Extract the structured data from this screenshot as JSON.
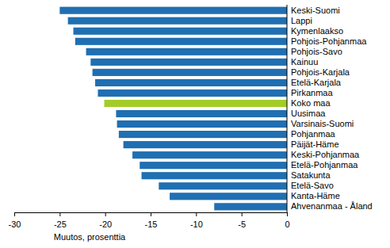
{
  "chart_data": {
    "type": "bar",
    "orientation": "horizontal",
    "categories": [
      "Keski-Suomi",
      "Lappi",
      "Kymenlaakso",
      "Pohjois-Pohjanmaa",
      "Pohjois-Savo",
      "Kainuu",
      "Pohjois-Karjala",
      "Etelä-Karjala",
      "Pirkanmaa",
      "Koko maa",
      "Uusimaa",
      "Varsinais-Suomi",
      "Pohjanmaa",
      "Päijät-Häme",
      "Keski-Pohjanmaa",
      "Etelä-Pohjanmaa",
      "Satakunta",
      "Etelä-Savo",
      "Kanta-Häme",
      "Ahvenanmaa - Åland"
    ],
    "values": [
      -25.0,
      -24.1,
      -23.5,
      -23.3,
      -22.1,
      -21.6,
      -21.4,
      -21.1,
      -20.8,
      -20.1,
      -18.8,
      -18.7,
      -18.5,
      -18.0,
      -17.0,
      -16.2,
      -16.0,
      -14.1,
      -12.9,
      -8.0
    ],
    "colors": [
      "#1f6fb2",
      "#1f6fb2",
      "#1f6fb2",
      "#1f6fb2",
      "#1f6fb2",
      "#1f6fb2",
      "#1f6fb2",
      "#1f6fb2",
      "#1f6fb2",
      "#a3cc29",
      "#1f6fb2",
      "#1f6fb2",
      "#1f6fb2",
      "#1f6fb2",
      "#1f6fb2",
      "#1f6fb2",
      "#1f6fb2",
      "#1f6fb2",
      "#1f6fb2",
      "#1f6fb2"
    ],
    "x_label": "Muutos, prosenttia",
    "xlim": [
      -30,
      0
    ],
    "xticks": [
      -30,
      -25,
      -20,
      -15,
      -10,
      -5,
      0
    ],
    "grid": false
  }
}
